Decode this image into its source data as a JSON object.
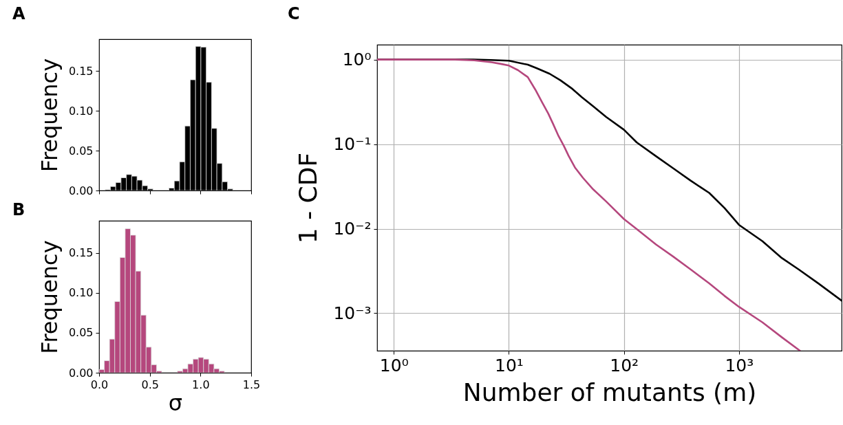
{
  "chart_data": [
    {
      "type": "histogram",
      "title": "A",
      "ylabel": "Frequency",
      "color": "#000000",
      "bins": [
        0.059,
        0.1115,
        0.164,
        0.2165,
        0.269,
        0.3215,
        0.374,
        0.4265,
        0.479,
        0.5315,
        0.584,
        0.6365,
        0.689,
        0.7415,
        0.794,
        0.8465,
        0.899,
        0.9515,
        1.004,
        1.0565,
        1.109,
        1.1615,
        1.214,
        1.2665,
        1.319
      ],
      "values": [
        0.001,
        0.005,
        0.01,
        0.016,
        0.02,
        0.018,
        0.013,
        0.006,
        0.002,
        0,
        0,
        0,
        0.003,
        0.012,
        0.036,
        0.081,
        0.139,
        0.181,
        0.18,
        0.136,
        0.078,
        0.034,
        0.011,
        0.002
      ],
      "xlim": [
        0,
        1.5
      ],
      "ylim": [
        0,
        0.19
      ],
      "xticks": [
        0,
        0.5,
        1,
        1.5
      ],
      "yticks": [
        {
          "value": 0,
          "label": "0.00"
        },
        {
          "value": 0.05,
          "label": "0.05"
        },
        {
          "value": 0.1,
          "label": "0.10"
        },
        {
          "value": 0.15,
          "label": "0.15"
        }
      ],
      "tick_labels": "y"
    },
    {
      "type": "histogram",
      "title": "B",
      "ylabel": "Frequency",
      "xlabel": "σ",
      "color": "#b5477d",
      "bins": [
        0,
        0.0515,
        0.103,
        0.1545,
        0.206,
        0.2575,
        0.309,
        0.3605,
        0.412,
        0.4635,
        0.515,
        0.5665,
        0.618,
        0.6695,
        0.721,
        0.7725,
        0.824,
        0.8755,
        0.927,
        0.9785,
        1.03,
        1.0815,
        1.133,
        1.1845,
        1.236
      ],
      "values": [
        0.004,
        0.015,
        0.042,
        0.089,
        0.144,
        0.18,
        0.172,
        0.127,
        0.072,
        0.032,
        0.01,
        0.002,
        0,
        0,
        0,
        0.002,
        0.005,
        0.011,
        0.017,
        0.019,
        0.017,
        0.011,
        0.005,
        0.002
      ],
      "xlim": [
        0,
        1.5
      ],
      "ylim": [
        0,
        0.19
      ],
      "xticks": [
        {
          "value": 0,
          "label": "0.0"
        },
        {
          "value": 0.5,
          "label": "0.5"
        },
        {
          "value": 1,
          "label": "1.0"
        },
        {
          "value": 1.5,
          "label": "1.5"
        }
      ],
      "yticks": [
        {
          "value": 0,
          "label": "0.00"
        },
        {
          "value": 0.05,
          "label": "0.05"
        },
        {
          "value": 0.1,
          "label": "0.10"
        },
        {
          "value": 0.15,
          "label": "0.15"
        }
      ]
    },
    {
      "type": "line",
      "title": "C",
      "xlabel": "Number of mutants (m)",
      "ylabel": "1 - CDF",
      "log": "xy",
      "grid": true,
      "xlim": [
        0.716,
        7800
      ],
      "ylim": [
        0.00036,
        1.5
      ],
      "xticks": [
        {
          "value": 1,
          "label": "10⁰"
        },
        {
          "value": 10,
          "label": "10¹"
        },
        {
          "value": 100,
          "label": "10²"
        },
        {
          "value": 1000,
          "label": "10³"
        }
      ],
      "yticks": [
        {
          "value": 1,
          "label": "10⁰"
        },
        {
          "value": 0.1,
          "label": "10⁻¹"
        },
        {
          "value": 0.01,
          "label": "10⁻²"
        },
        {
          "value": 0.001,
          "label": "10⁻³"
        }
      ],
      "series": [
        {
          "color": "#000000",
          "x": [
            0.716,
            4.9,
            7,
            10,
            14.6,
            17.5,
            22.6,
            28,
            34.9,
            43,
            54,
            70,
            100,
            129,
            190,
            267,
            380,
            551,
            750,
            1000,
            1600,
            2355,
            3300,
            4875,
            7800
          ],
          "values": [
            1,
            1,
            0.99,
            0.97,
            0.87,
            0.79,
            0.68,
            0.57,
            0.46,
            0.36,
            0.28,
            0.21,
            0.148,
            0.105,
            0.072,
            0.052,
            0.037,
            0.0265,
            0.0175,
            0.0111,
            0.0071,
            0.0045,
            0.0033,
            0.00226,
            0.00141
          ]
        },
        {
          "color": "#b5477d",
          "x": [
            0.716,
            3.4,
            5,
            7.06,
            8.5,
            10,
            12,
            14.6,
            17,
            19.5,
            22,
            24.3,
            27,
            30.1,
            33,
            37.5,
            44,
            54,
            70,
            100,
            129,
            190,
            267,
            380,
            551,
            750,
            1000,
            1600,
            2355,
            3388
          ],
          "values": [
            1,
            1,
            0.98,
            0.93,
            0.89,
            0.85,
            0.75,
            0.62,
            0.44,
            0.31,
            0.23,
            0.172,
            0.125,
            0.095,
            0.073,
            0.053,
            0.04,
            0.0292,
            0.021,
            0.013,
            0.0099,
            0.0065,
            0.0047,
            0.0033,
            0.00226,
            0.0016,
            0.00119,
            0.00078,
            0.00052,
            0.00036
          ]
        }
      ]
    }
  ]
}
